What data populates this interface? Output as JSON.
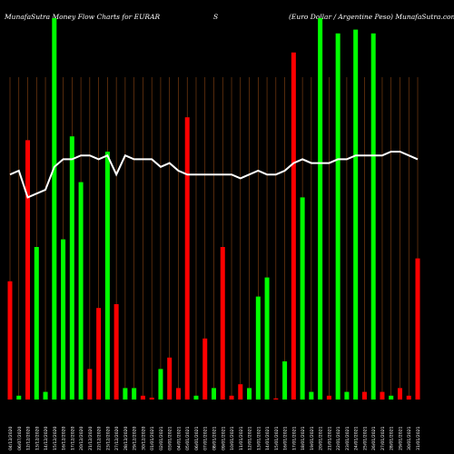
{
  "header": {
    "left": "MunafaSutra Money Flow  Charts for EURAR",
    "middle": "S",
    "right": "(Euro  Dollar / Argentine    Peso) MunafaSutra.com"
  },
  "chart_data": {
    "type": "bar",
    "theme": {
      "background": "#000000",
      "up": "#00ff00",
      "down": "#ff0000",
      "line": "#ffffff",
      "grid": "#8b4513",
      "tick_text": "#ffffff"
    },
    "x": [
      "04/12/2020 ",
      "06/07/2020 ",
      "12/12/2020 ",
      "13/12/2020 ",
      "14/12/2020 ",
      "15/12/2020 ",
      "16/12/2020 ",
      "17/12/2020 ",
      "20/12/2020 ",
      "21/12/2020 ",
      "22/12/2020 ",
      "23/12/2020 ",
      "27/12/2020 ",
      "28/12/2020 ",
      "29/12/2020 ",
      "30/12/2020 ",
      "01/01/2021 ",
      "02/01/2021 ",
      "03/01/2021 ",
      "04/01/2021 ",
      "05/01/2021 ",
      "06/01/2021 ",
      "07/01/2021 ",
      "08/01/2021 ",
      "09/01/2021 ",
      "10/01/2021 ",
      "11/01/2021 ",
      "12/01/2021 ",
      "13/01/2021 ",
      "14/01/2021 ",
      "15/01/2021 ",
      "16/01/2021 ",
      "17/01/2021 ",
      "18/01/2021 ",
      "19/01/2021 ",
      "20/01/2021 ",
      "21/01/2021 ",
      "22/01/2021 ",
      "23/01/2021 ",
      "24/01/2021 ",
      "25/01/2021 ",
      "26/01/2021 ",
      "27/01/2021 ",
      "28/01/2021 ",
      "29/01/2021 ",
      "30/01/2021 ",
      "31/01/2021 "
    ],
    "colors": [
      "down",
      "up",
      "down",
      "up",
      "up",
      "up",
      "up",
      "up",
      "up",
      "down",
      "down",
      "up",
      "down",
      "up",
      "up",
      "down",
      "down",
      "up",
      "down",
      "down",
      "down",
      "up",
      "down",
      "up",
      "down",
      "down",
      "down",
      "up",
      "up",
      "up",
      "down",
      "up",
      "down",
      "up",
      "up",
      "up",
      "down",
      "up",
      "up",
      "up",
      "down",
      "up",
      "down",
      "up",
      "down",
      "down",
      "down"
    ],
    "values": [
      31,
      1,
      68,
      40,
      2,
      100,
      42,
      69,
      57,
      8,
      24,
      65,
      25,
      3,
      3,
      1,
      0.5,
      8,
      11,
      3,
      74,
      1,
      16,
      3,
      40,
      1,
      4,
      3,
      27,
      32,
      0.3,
      10,
      91,
      53,
      2,
      100,
      1,
      96,
      2,
      97,
      2,
      96,
      2,
      1,
      3,
      1,
      37
    ],
    "flow_line": [
      59,
      60,
      53,
      54,
      55,
      61,
      63,
      63,
      64,
      64,
      63,
      64,
      59,
      64,
      63,
      63,
      63,
      61,
      62,
      60,
      59,
      59,
      59,
      59,
      59,
      59,
      58,
      59,
      60,
      59,
      59,
      60,
      62,
      63,
      62,
      62,
      62,
      63,
      63,
      64,
      64,
      64,
      64,
      65,
      65,
      64,
      63
    ]
  }
}
